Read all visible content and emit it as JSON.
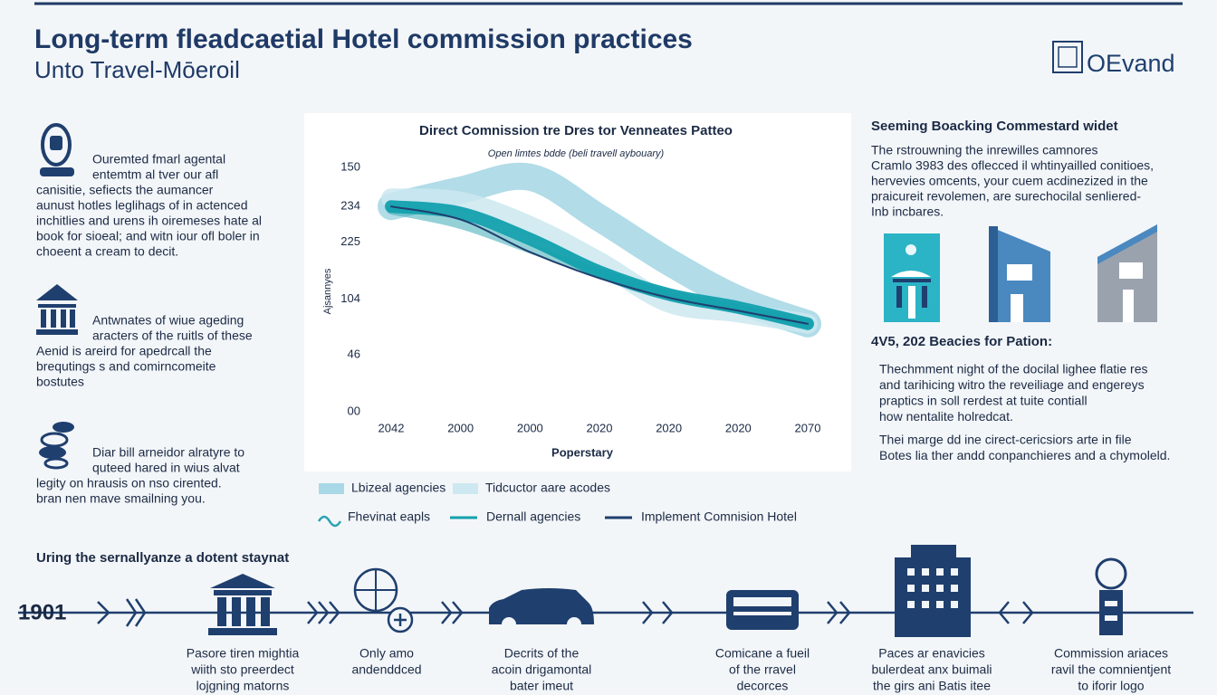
{
  "header": {
    "title": "Long-term fleadcaetial Hotel commission practices",
    "subtitle": "Unto Travel-Mōeroil",
    "logo": "OEvand"
  },
  "left_sections": [
    {
      "lines": [
        "Ouremted fmarl agental",
        "entemtm al tver our afl",
        "canisitie, sefiects the aumancer",
        "aunust hotles leglihags of in actenced",
        "inchitlies and urens ih oiremeses hate al",
        "book for sioeal; and witn iour ofl boler in",
        "choeent a cream to decit."
      ]
    },
    {
      "lines": [
        "Antwnates of wiue ageding",
        "aracters of the ruitls of these",
        "Aenid is areird for apedrcall the",
        "brequtings s and comirncomeite",
        "bostutes"
      ]
    },
    {
      "lines": [
        "Diar bill arneidor alratyre to",
        "quteed hared in wius alvat",
        "legity on hrausis on nso cirented.",
        "bran nen mave smailning you."
      ]
    }
  ],
  "chart_data": {
    "type": "line",
    "title": "Direct Comnission tre Dres tor Venneates Patteo",
    "subtitle": "Open limtes bdde (beli travell aybouary)",
    "y_label": "Ajsannyes",
    "x_label": "Poperstary",
    "categories": [
      "2042",
      "2000",
      "2000",
      "2020",
      "2020",
      "2020",
      "2070"
    ],
    "ylim": [
      0,
      150
    ],
    "yticks": [
      150,
      {
        "value": 126,
        "label": "234"
      },
      {
        "value": 104,
        "label": "225"
      },
      {
        "value": 69,
        "label": "104"
      },
      {
        "value": 35,
        "label": "46"
      },
      {
        "value": 0,
        "label": "00"
      }
    ],
    "series": [
      {
        "name": "Lbizeal agencies",
        "color": "#a9d8e6",
        "values": [
          126,
          136,
          144,
          119,
          92,
          69,
          54
        ]
      },
      {
        "name": "Tidcuctor aare acodes",
        "color": "#cde8f0",
        "values": [
          131,
          129,
          114,
          92,
          67,
          61,
          54
        ]
      },
      {
        "name": "Fhevinat eapls",
        "color": "#2aa3b0",
        "values": [
          124,
          115,
          100,
          85,
          72,
          63,
          54
        ]
      },
      {
        "name": "Dernall agencies",
        "color": "#12a0ad",
        "values": [
          126,
          122,
          106,
          86,
          72,
          64,
          54
        ]
      },
      {
        "name": "Implement Comnision Hotel",
        "color": "#1f3f6e",
        "values": [
          126,
          118,
          98,
          82,
          70,
          62,
          54
        ]
      }
    ]
  },
  "right_panel": {
    "heading": "Seeming Boacking Commestard widet",
    "intro": [
      "The rstrouwning the inrewilles camnores",
      "Cramlo 3983 des oflecced il whtinyailled conitioes,",
      "hervevies omcents, your cuem acdinezized in the",
      "praicureit revolemen, are surechocilal senliered-",
      "Inb incbares."
    ],
    "subheading": "4V5, 202 Beacies for Pation:",
    "para1": [
      "Thechmment night of the docilal lighee flatie res",
      "and tarihicing witro the reveiliage and engereys",
      "praptics in soll rerdest at tuite contiall",
      "how nentalite holredcat."
    ],
    "para2": [
      "Thei marge dd ine cirect-cericsiors arte in file",
      "Botes lia ther andd conpanchieres and a chymoleld."
    ]
  },
  "timeline": {
    "title": "Uring the sernallyanze a dotent staynat",
    "start": "1901",
    "captions": [
      [
        "Pasore tiren mightia",
        "wiith sto preerdect",
        "lojgning matorns"
      ],
      [
        "Only amo",
        "andenddced"
      ],
      [
        "Decrits of the",
        "acoin drigamontal",
        "bater imeut"
      ],
      [
        "Comicane a fueil",
        "of the rravel",
        "decorces"
      ],
      [
        "Paces ar enavicies",
        "bulerdeat anx buimali",
        "the girs ani Batis itee"
      ],
      [
        "Commission ariaces",
        "ravil the comnientjent",
        "to iforir logo"
      ]
    ]
  }
}
